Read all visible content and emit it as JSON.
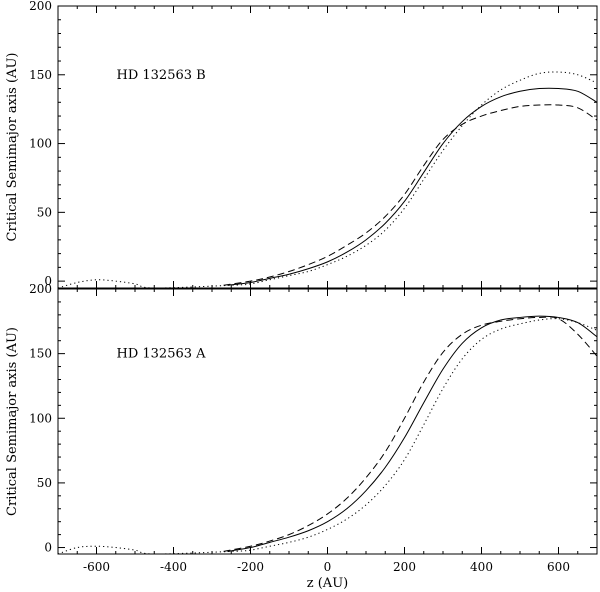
{
  "chart_data": [
    {
      "type": "line",
      "annotation": "HD 132563 B",
      "xlabel": "",
      "ylabel": "Critical Semimajor axis (AU)",
      "xlim": [
        -700,
        700
      ],
      "ylim": [
        -5,
        200
      ],
      "x_ticks": [
        -600,
        -400,
        -200,
        0,
        200,
        400,
        600
      ],
      "y_ticks": [
        0,
        50,
        100,
        150,
        200
      ],
      "grid": false,
      "series": [
        {
          "style": "solid",
          "x": [
            -700,
            -600,
            -500,
            -400,
            -320,
            -260,
            -200,
            -150,
            -100,
            -50,
            0,
            50,
            100,
            150,
            200,
            250,
            300,
            350,
            400,
            450,
            500,
            550,
            600,
            650,
            700
          ],
          "y": [
            null,
            null,
            null,
            null,
            null,
            -3,
            -1,
            2,
            5,
            9,
            14,
            21,
            30,
            42,
            58,
            79,
            100,
            116,
            127,
            134,
            138,
            140,
            140,
            138,
            130
          ]
        },
        {
          "style": "dashed",
          "x": [
            -700,
            -600,
            -500,
            -400,
            -320,
            -270,
            -200,
            -150,
            -100,
            -50,
            0,
            50,
            100,
            150,
            200,
            250,
            300,
            350,
            400,
            450,
            500,
            550,
            600,
            650,
            700
          ],
          "y": [
            null,
            null,
            null,
            null,
            null,
            -3,
            0,
            3,
            7,
            12,
            18,
            26,
            35,
            47,
            63,
            84,
            103,
            114,
            120,
            124,
            127,
            128,
            128,
            126,
            117
          ]
        },
        {
          "style": "dotted",
          "x": [
            -700,
            -650,
            -600,
            -550,
            -500,
            -450,
            -250,
            -200,
            -150,
            -100,
            -50,
            0,
            50,
            100,
            150,
            200,
            250,
            300,
            350,
            400,
            450,
            500,
            550,
            600,
            650,
            700
          ],
          "y": [
            -5,
            -1,
            1,
            0,
            -2,
            -5,
            -3,
            -2,
            1,
            4,
            7,
            12,
            18,
            26,
            37,
            53,
            74,
            95,
            113,
            128,
            139,
            146,
            151,
            152,
            150,
            144
          ]
        }
      ]
    },
    {
      "type": "line",
      "annotation": "HD 132563 A",
      "xlabel": "z (AU)",
      "ylabel": "Critical Semimajor axis (AU)",
      "xlim": [
        -700,
        700
      ],
      "ylim": [
        -5,
        200
      ],
      "x_ticks": [
        -600,
        -400,
        -200,
        0,
        200,
        400,
        600
      ],
      "y_ticks": [
        0,
        50,
        100,
        150,
        200
      ],
      "grid": false,
      "series": [
        {
          "style": "solid",
          "x": [
            -700,
            -600,
            -500,
            -400,
            -320,
            -260,
            -200,
            -150,
            -100,
            -50,
            0,
            50,
            100,
            150,
            200,
            250,
            300,
            350,
            400,
            450,
            500,
            550,
            600,
            650,
            700
          ],
          "y": [
            null,
            null,
            null,
            null,
            null,
            -3,
            0,
            4,
            8,
            13,
            20,
            30,
            44,
            62,
            85,
            112,
            138,
            158,
            170,
            176,
            178,
            179,
            178,
            174,
            163
          ]
        },
        {
          "style": "dashed",
          "x": [
            -700,
            -600,
            -500,
            -400,
            -320,
            -270,
            -200,
            -150,
            -100,
            -50,
            0,
            50,
            100,
            150,
            200,
            250,
            300,
            350,
            400,
            450,
            500,
            550,
            600,
            650,
            700
          ],
          "y": [
            null,
            null,
            null,
            null,
            null,
            -3,
            1,
            5,
            10,
            17,
            26,
            38,
            54,
            74,
            100,
            128,
            151,
            165,
            172,
            175,
            177,
            178,
            177,
            165,
            148
          ]
        },
        {
          "style": "dotted",
          "x": [
            -700,
            -650,
            -600,
            -550,
            -500,
            -450,
            -250,
            -200,
            -150,
            -100,
            -50,
            0,
            50,
            100,
            150,
            200,
            250,
            300,
            350,
            400,
            450,
            500,
            550,
            600,
            650,
            700
          ],
          "y": [
            -5,
            0,
            1,
            0,
            -2,
            -5,
            -3,
            -2,
            1,
            4,
            8,
            14,
            22,
            33,
            48,
            68,
            95,
            123,
            146,
            161,
            169,
            173,
            176,
            177,
            174,
            168
          ]
        }
      ]
    }
  ]
}
